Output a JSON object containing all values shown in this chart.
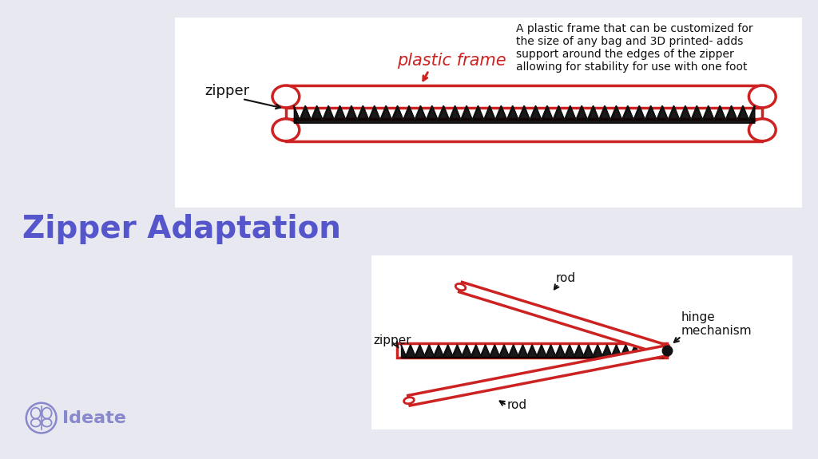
{
  "bg_color": "#e8e8f0",
  "panel1_bg": "#ffffff",
  "panel2_bg": "#ffffff",
  "title_text": "Zipper Adaptation",
  "title_color": "#5555cc",
  "title_fontsize": 28,
  "caption1": "A plastic frame that can be customized for\nthe size of any bag and 3D printed- adds\nsupport around the edges of the zipper\nallowing for stability for use with one foot",
  "caption1_fontsize": 10,
  "red_color": "#cc2222",
  "dark_color": "#111111",
  "brand_color": "#8888cc",
  "brand_text": "Ideate",
  "plastic_frame_label": "plastic frame",
  "zipper_label1": "zipper",
  "zipper_label2": "zipper",
  "rod_label1": "rod",
  "rod_label2": "rod",
  "hinge_label": "hinge\nmechanism"
}
